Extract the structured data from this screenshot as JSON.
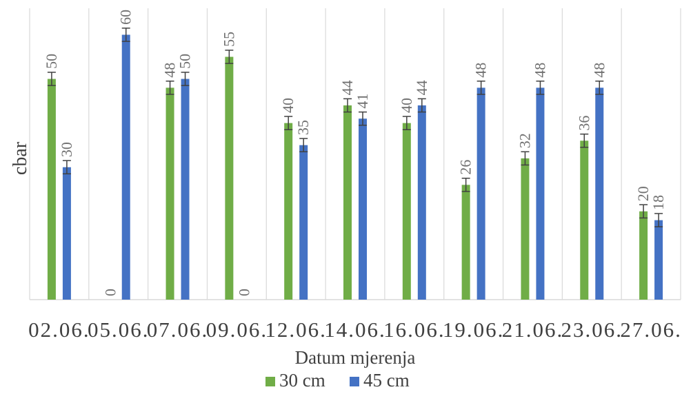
{
  "chart_data": {
    "type": "bar",
    "title": "",
    "xlabel": "Datum mjerenja",
    "ylabel": "cbar",
    "ylim": [
      0,
      66
    ],
    "grid": "vertical",
    "legend": "bottom",
    "error_bars": true,
    "error_bar_size": 1.5,
    "categories": [
      "02.06.",
      "05.06.",
      "07.06.",
      "09.06.",
      "12.06.",
      "14.06.",
      "16.06.",
      "19.06.",
      "21.06.",
      "23.06.",
      "27.06."
    ],
    "series": [
      {
        "name": "30 cm",
        "color": "#70ad47",
        "values": [
          50,
          0,
          48,
          55,
          40,
          44,
          40,
          26,
          32,
          36,
          20
        ]
      },
      {
        "name": "45 cm",
        "color": "#4472c4",
        "values": [
          30,
          60,
          50,
          0,
          35,
          41,
          44,
          48,
          48,
          48,
          18
        ]
      }
    ]
  }
}
